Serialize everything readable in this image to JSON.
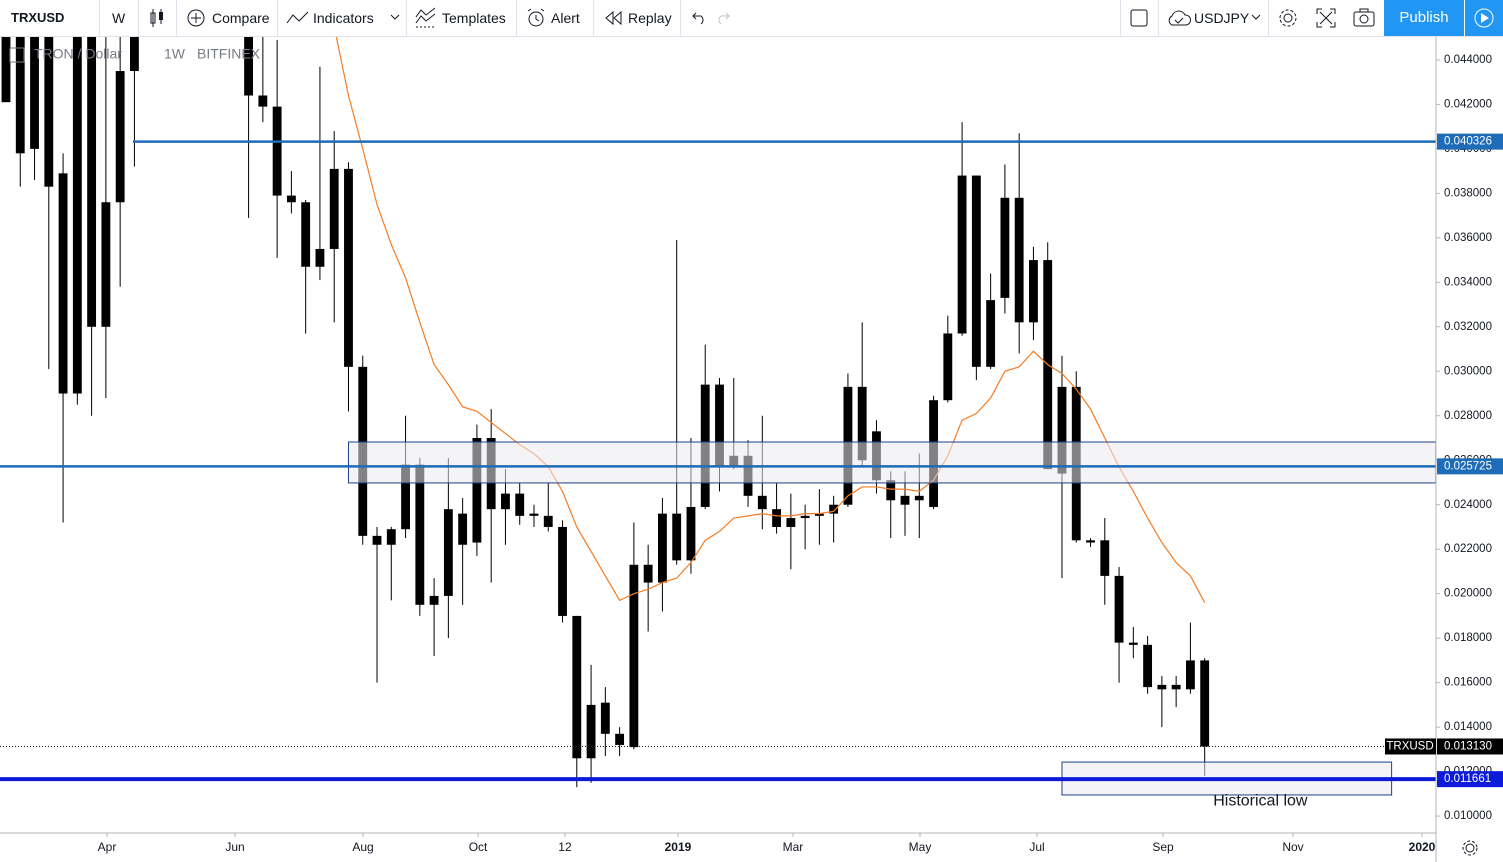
{
  "toolbar": {
    "symbol": "TRXUSD",
    "interval": "W",
    "compare": "Compare",
    "indicators": "Indicators",
    "templates": "Templates",
    "alert": "Alert",
    "replay": "Replay",
    "layout": "USDJPY",
    "publish": "Publish"
  },
  "chart_data": {
    "type": "candlestick",
    "legend": {
      "name": "TRON / Dollar",
      "interval": "1W",
      "exchange": "BITFINEX"
    },
    "color": "#000000",
    "x": [
      0,
      1,
      2,
      3,
      4,
      5,
      6,
      7,
      8,
      9,
      17,
      18,
      19,
      20,
      21,
      22,
      23,
      24,
      25,
      26,
      27,
      28,
      29,
      30,
      31,
      32,
      33,
      34,
      35,
      36,
      37,
      38,
      39,
      40,
      41,
      42,
      43,
      44,
      45,
      46,
      47,
      48,
      49,
      50,
      51,
      52,
      53,
      54,
      55,
      56,
      57,
      58,
      59,
      60,
      61,
      62,
      63,
      64,
      65,
      66,
      67,
      68,
      69,
      70,
      71,
      72,
      73,
      74,
      75,
      76,
      77,
      78,
      79,
      80,
      81,
      82,
      83,
      84
    ],
    "open": [
      0.0465,
      0.046,
      0.0455,
      0.046,
      0.0389,
      0.046,
      0.0468,
      0.032,
      0.0376,
      0.0435,
      0.046,
      0.0424,
      0.0419,
      0.0379,
      0.0376,
      0.0347,
      0.0355,
      0.0391,
      0.0302,
      0.0226,
      0.0222,
      0.0229,
      0.0258,
      0.0195,
      0.0199,
      0.0222,
      0.0223,
      0.027,
      0.0238,
      0.0245,
      0.0236,
      0.0235,
      0.023,
      0.019,
      0.0126,
      0.0151,
      0.0137,
      0.0131,
      0.0213,
      0.0205,
      0.0236,
      0.0215,
      0.0239,
      0.0294,
      0.0257,
      0.0262,
      0.0244,
      0.0238,
      0.023,
      0.0234,
      0.0235,
      0.0236,
      0.024,
      0.0293,
      0.0273,
      0.0251,
      0.0244,
      0.0242,
      0.0239,
      0.0287,
      0.0317,
      0.0388,
      0.0302,
      0.0333,
      0.0378,
      0.0322,
      0.035,
      0.0293,
      0.0293,
      0.0224,
      0.0224,
      0.0208,
      0.0178,
      0.0177,
      0.0159,
      0.0159,
      0.0157,
      0.017
    ],
    "high": [
      0.048,
      0.048,
      0.047,
      0.047,
      0.0398,
      0.047,
      0.048,
      0.046,
      0.046,
      0.047,
      0.047,
      0.0453,
      0.0449,
      0.039,
      0.0377,
      0.0437,
      0.0408,
      0.0394,
      0.0307,
      0.023,
      0.023,
      0.028,
      0.0261,
      0.0207,
      0.0261,
      0.0243,
      0.0276,
      0.0283,
      0.0256,
      0.025,
      0.024,
      0.025,
      0.0233,
      0.019,
      0.0168,
      0.0158,
      0.014,
      0.0232,
      0.0222,
      0.0243,
      0.0359,
      0.027,
      0.0312,
      0.0297,
      0.0297,
      0.0269,
      0.028,
      0.025,
      0.0245,
      0.024,
      0.0247,
      0.0244,
      0.0299,
      0.0322,
      0.0278,
      0.0255,
      0.0255,
      0.0263,
      0.0289,
      0.0325,
      0.0412,
      0.0388,
      0.0344,
      0.0393,
      0.0407,
      0.0356,
      0.0358,
      0.0307,
      0.03,
      0.0225,
      0.0234,
      0.0212,
      0.0185,
      0.0181,
      0.0163,
      0.0163,
      0.0187,
      0.0171
    ],
    "low": [
      0.0421,
      0.0383,
      0.0386,
      0.0301,
      0.0232,
      0.0285,
      0.028,
      0.0288,
      0.0338,
      0.0392,
      0.0369,
      0.0412,
      0.0351,
      0.0371,
      0.0317,
      0.0341,
      0.0322,
      0.0282,
      0.0222,
      0.016,
      0.0197,
      0.0225,
      0.019,
      0.0172,
      0.018,
      0.0195,
      0.0217,
      0.0205,
      0.0222,
      0.0231,
      0.023,
      0.0228,
      0.0187,
      0.0113,
      0.0115,
      0.0127,
      0.0127,
      0.013,
      0.0183,
      0.0192,
      0.0213,
      0.0209,
      0.0238,
      0.0246,
      0.0256,
      0.0239,
      0.0229,
      0.0227,
      0.0211,
      0.022,
      0.0222,
      0.0223,
      0.0239,
      0.0257,
      0.0245,
      0.0225,
      0.0226,
      0.0225,
      0.0238,
      0.0286,
      0.0316,
      0.0296,
      0.0301,
      0.0326,
      0.0308,
      0.0314,
      0.0256,
      0.0207,
      0.0223,
      0.0221,
      0.0195,
      0.016,
      0.0171,
      0.0155,
      0.014,
      0.0149,
      0.0155,
      0.0118
    ],
    "close": [
      0.0421,
      0.0398,
      0.04,
      0.0383,
      0.029,
      0.029,
      0.032,
      0.0376,
      0.0435,
      0.0465,
      0.0424,
      0.0419,
      0.0379,
      0.0376,
      0.0347,
      0.0355,
      0.0391,
      0.0302,
      0.0226,
      0.0222,
      0.0229,
      0.0258,
      0.0195,
      0.0199,
      0.0238,
      0.0236,
      0.027,
      0.0238,
      0.0245,
      0.0235,
      0.0235,
      0.023,
      0.019,
      0.0126,
      0.015,
      0.0137,
      0.0132,
      0.0213,
      0.0205,
      0.0236,
      0.0215,
      0.0239,
      0.0294,
      0.0257,
      0.0262,
      0.0244,
      0.0238,
      0.023,
      0.0234,
      0.0235,
      0.0236,
      0.024,
      0.0293,
      0.026,
      0.0251,
      0.0242,
      0.024,
      0.0244,
      0.0287,
      0.0317,
      0.0388,
      0.0302,
      0.0332,
      0.0378,
      0.0322,
      0.035,
      0.0256,
      0.0254,
      0.0224,
      0.0223,
      0.0208,
      0.0178,
      0.0177,
      0.0158,
      0.0157,
      0.0157,
      0.017,
      0.01313
    ],
    "ma": {
      "color": "#f57c23",
      "x": [
        23,
        24,
        25,
        26,
        27,
        28,
        29,
        30,
        31,
        32,
        33,
        34,
        35,
        36,
        37,
        38,
        39,
        40,
        41,
        42,
        43,
        44,
        45,
        46,
        47,
        48,
        49,
        50,
        51,
        52,
        53,
        54,
        55,
        56,
        57,
        58,
        59,
        60,
        61,
        62,
        63,
        64,
        65,
        66,
        67,
        68,
        69,
        70,
        71,
        72,
        73,
        74,
        75,
        76,
        77,
        78,
        79,
        80,
        81,
        82,
        83,
        84
      ],
      "values": [
        0.0455,
        0.0424,
        0.04,
        0.0375,
        0.0357,
        0.0342,
        0.0322,
        0.0303,
        0.0294,
        0.0284,
        0.0282,
        0.0277,
        0.0272,
        0.0267,
        0.0263,
        0.0257,
        0.0246,
        0.023,
        0.0219,
        0.0208,
        0.0197,
        0.02,
        0.0202,
        0.0205,
        0.0207,
        0.0214,
        0.0224,
        0.0228,
        0.0234,
        0.0235,
        0.0236,
        0.0235,
        0.0235,
        0.0236,
        0.0236,
        0.0237,
        0.0244,
        0.0248,
        0.0248,
        0.0247,
        0.0247,
        0.0246,
        0.0251,
        0.0262,
        0.0278,
        0.0281,
        0.0288,
        0.03,
        0.0302,
        0.0309,
        0.0303,
        0.0299,
        0.0292,
        0.0283,
        0.027,
        0.0257,
        0.0246,
        0.0234,
        0.0223,
        0.0214,
        0.0208,
        0.0196
      ]
    },
    "levels": [
      {
        "value": 0.040326,
        "x_start": 8.9,
        "color": "#1e6bb8"
      },
      {
        "value": 0.025725,
        "color": "#1e6bb8"
      },
      {
        "value": 0.011661,
        "color": "#0d1ad8"
      }
    ],
    "current_price": {
      "name": "TRXUSD",
      "value": 0.01313,
      "label": "0.013130"
    },
    "boxes": [
      {
        "x": [
          24,
          100.2
        ],
        "y": [
          0.02498,
          0.02682
        ],
        "color": "#1e3f8a"
      },
      {
        "x": [
          74,
          97.1
        ],
        "y": [
          0.01095,
          0.01243
        ],
        "color": "#1e3f8a"
      }
    ],
    "annotation": {
      "text": "Historical low",
      "x": 87.9,
      "y": 0.01066
    },
    "xlim": [
      -0.42,
      100.21
    ],
    "ylim": [
      0.00924,
      0.04503
    ],
    "xticks": [
      {
        "value": 7.08,
        "label": "Apr"
      },
      {
        "value": 16.05,
        "label": "Jun"
      },
      {
        "value": 25.02,
        "label": "Aug"
      },
      {
        "value": 33.08,
        "label": "Oct"
      },
      {
        "value": 39.17,
        "label": "12"
      },
      {
        "value": 47.09,
        "label": "2019"
      },
      {
        "value": 55.15,
        "label": "Mar"
      },
      {
        "value": 64.05,
        "label": "May"
      },
      {
        "value": 72.25,
        "label": "Jul"
      },
      {
        "value": 81.08,
        "label": "Sep"
      },
      {
        "value": 90.19,
        "label": "Nov"
      },
      {
        "value": 99.23,
        "label": "2020"
      }
    ],
    "yticks": [
      {
        "value": 0.01,
        "label": "0.010000"
      },
      {
        "value": 0.012,
        "label": "0.012000"
      },
      {
        "value": 0.014,
        "label": "0.014000"
      },
      {
        "value": 0.016,
        "label": "0.016000"
      },
      {
        "value": 0.018,
        "label": "0.018000"
      },
      {
        "value": 0.02,
        "label": "0.020000"
      },
      {
        "value": 0.022,
        "label": "0.022000"
      },
      {
        "value": 0.024,
        "label": "0.024000"
      },
      {
        "value": 0.026,
        "label": "0.026000"
      },
      {
        "value": 0.028,
        "label": "0.028000"
      },
      {
        "value": 0.03,
        "label": "0.030000"
      },
      {
        "value": 0.032,
        "label": "0.032000"
      },
      {
        "value": 0.034,
        "label": "0.034000"
      },
      {
        "value": 0.036,
        "label": "0.036000"
      },
      {
        "value": 0.038,
        "label": "0.038000"
      },
      {
        "value": 0.04,
        "label": "0.040000"
      },
      {
        "value": 0.042,
        "label": "0.042000"
      },
      {
        "value": 0.044,
        "label": "0.044000"
      }
    ],
    "grid": false
  }
}
